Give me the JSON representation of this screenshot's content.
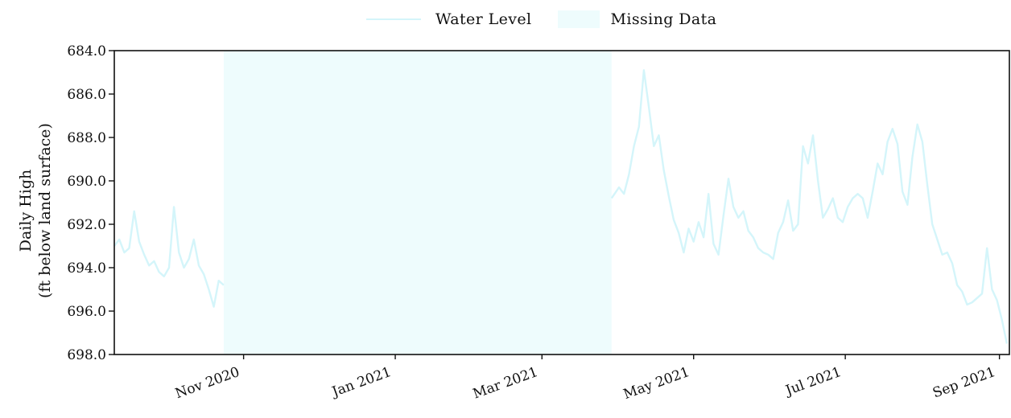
{
  "chart_data": {
    "type": "line",
    "title": "",
    "ylabel": [
      "Daily High",
      "(ft below land surface)"
    ],
    "xlabel": "",
    "y_axis_inverted": true,
    "ylim": [
      684.0,
      698.0
    ],
    "yticks": [
      "684.0",
      "686.0",
      "688.0",
      "690.0",
      "692.0",
      "694.0",
      "696.0",
      "698.0"
    ],
    "xlim": [
      "2020-09-10",
      "2021-09-05"
    ],
    "xticks": [
      {
        "date": "2020-11-01",
        "label": "Nov 2020"
      },
      {
        "date": "2021-01-01",
        "label": "Jan 2021"
      },
      {
        "date": "2021-03-01",
        "label": "Mar 2021"
      },
      {
        "date": "2021-05-01",
        "label": "May 2021"
      },
      {
        "date": "2021-07-01",
        "label": "Jul 2021"
      },
      {
        "date": "2021-09-01",
        "label": "Sep 2021"
      }
    ],
    "grid": false,
    "legend_placement": "top-center",
    "legend": [
      "Water Level",
      "Missing Data"
    ],
    "colors": {
      "line": "#d4f5fa",
      "missing": "#eefcfd",
      "axis": "#111111"
    },
    "missing_data": {
      "start": "2020-10-24",
      "end": "2021-03-29"
    },
    "series": [
      {
        "name": "Water Level",
        "segments": [
          {
            "x": [
              "2020-09-10",
              "2020-09-12",
              "2020-09-14",
              "2020-09-16",
              "2020-09-18",
              "2020-09-20",
              "2020-09-22",
              "2020-09-24",
              "2020-09-26",
              "2020-09-28",
              "2020-09-30",
              "2020-10-02",
              "2020-10-04",
              "2020-10-06",
              "2020-10-08",
              "2020-10-10",
              "2020-10-12",
              "2020-10-14",
              "2020-10-16",
              "2020-10-18",
              "2020-10-20",
              "2020-10-22",
              "2020-10-24"
            ],
            "y": [
              693.0,
              692.7,
              693.3,
              693.1,
              691.4,
              692.8,
              693.4,
              693.9,
              693.7,
              694.2,
              694.4,
              694.0,
              691.2,
              693.3,
              694.0,
              693.6,
              692.7,
              693.9,
              694.3,
              695.0,
              695.8,
              694.6,
              694.8
            ]
          },
          {
            "x": [
              "2021-03-29",
              "2021-04-01",
              "2021-04-03",
              "2021-04-05",
              "2021-04-07",
              "2021-04-09",
              "2021-04-11",
              "2021-04-13",
              "2021-04-15",
              "2021-04-17",
              "2021-04-19",
              "2021-04-21",
              "2021-04-23",
              "2021-04-25",
              "2021-04-27",
              "2021-04-29",
              "2021-05-01",
              "2021-05-03",
              "2021-05-05",
              "2021-05-07",
              "2021-05-09",
              "2021-05-11",
              "2021-05-13",
              "2021-05-15",
              "2021-05-17",
              "2021-05-19",
              "2021-05-21",
              "2021-05-23",
              "2021-05-25",
              "2021-05-27",
              "2021-05-29",
              "2021-05-31",
              "2021-06-02",
              "2021-06-04",
              "2021-06-06",
              "2021-06-08",
              "2021-06-10",
              "2021-06-12",
              "2021-06-14",
              "2021-06-16",
              "2021-06-18",
              "2021-06-20",
              "2021-06-22",
              "2021-06-24",
              "2021-06-26",
              "2021-06-28",
              "2021-06-30",
              "2021-07-02",
              "2021-07-04",
              "2021-07-06",
              "2021-07-08",
              "2021-07-10",
              "2021-07-12",
              "2021-07-14",
              "2021-07-16",
              "2021-07-18",
              "2021-07-20",
              "2021-07-22",
              "2021-07-24",
              "2021-07-26",
              "2021-07-28",
              "2021-07-30",
              "2021-08-01",
              "2021-08-03",
              "2021-08-05",
              "2021-08-07",
              "2021-08-09",
              "2021-08-11",
              "2021-08-13",
              "2021-08-15",
              "2021-08-17",
              "2021-08-19",
              "2021-08-21",
              "2021-08-23",
              "2021-08-25",
              "2021-08-27",
              "2021-08-29",
              "2021-08-31",
              "2021-09-02",
              "2021-09-04"
            ],
            "y": [
              690.8,
              690.3,
              690.6,
              689.7,
              688.4,
              687.5,
              684.9,
              686.6,
              688.4,
              687.9,
              689.5,
              690.7,
              691.8,
              692.4,
              693.3,
              692.2,
              692.8,
              691.9,
              692.6,
              690.6,
              692.9,
              693.4,
              691.6,
              689.9,
              691.2,
              691.7,
              691.4,
              692.3,
              692.6,
              693.1,
              693.3,
              693.4,
              693.6,
              692.4,
              691.9,
              690.9,
              692.3,
              692.0,
              688.4,
              689.2,
              687.9,
              690.0,
              691.7,
              691.3,
              690.8,
              691.7,
              691.9,
              691.2,
              690.8,
              690.6,
              690.8,
              691.7,
              690.5,
              689.2,
              689.7,
              688.2,
              687.6,
              688.3,
              690.5,
              691.1,
              688.9,
              687.4,
              688.2,
              690.2,
              692.0,
              692.7,
              693.4,
              693.3,
              693.8,
              694.8,
              695.1,
              695.7,
              695.6,
              695.4,
              695.2,
              693.1,
              695.0,
              695.5,
              696.4,
              697.5
            ]
          }
        ]
      }
    ]
  }
}
